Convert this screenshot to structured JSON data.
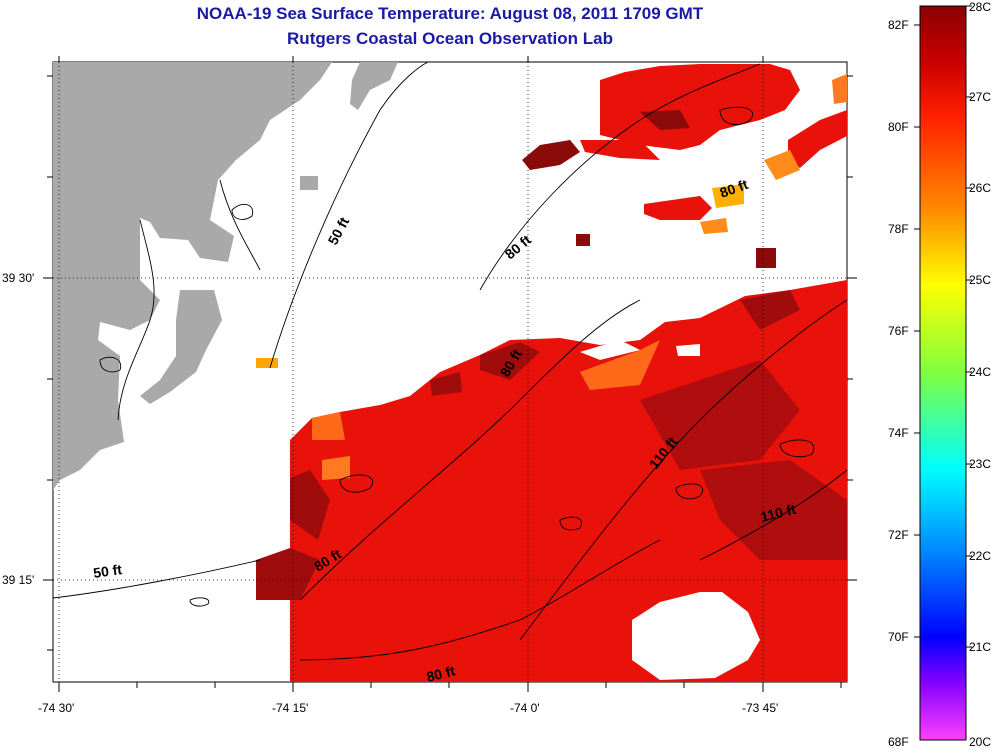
{
  "title": {
    "line1": "NOAA-19 Sea Surface Temperature:  August 08, 2011 1709 GMT",
    "line2": "Rutgers Coastal Ocean Observation Lab"
  },
  "map": {
    "lon_labels": [
      "-74 30'",
      "-74 15'",
      "-74 0'",
      "-73 45'"
    ],
    "lat_labels": [
      "39 30'",
      "39 15'"
    ],
    "contour_labels": [
      "50 ft",
      "50 ft",
      "80 ft",
      "80 ft",
      "80 ft",
      "80 ft",
      "80 ft",
      "110 ft",
      "110 ft"
    ],
    "colors": {
      "land": "#a9a9a9",
      "no_data": "#ffffff",
      "sst_dominant": "#e8120a",
      "sst_warm": "#8b0a0a",
      "sst_cool": "#ff6a1a"
    }
  },
  "colorbar": {
    "fahrenheit_labels": [
      "82F",
      "80F",
      "78F",
      "76F",
      "74F",
      "72F",
      "70F",
      "68F"
    ],
    "celsius_labels": [
      "28C",
      "27C",
      "26C",
      "25C",
      "24C",
      "23C",
      "22C",
      "21C",
      "20C"
    ],
    "colors": [
      "#8b0000",
      "#ff0000",
      "#ff8c00",
      "#ffff00",
      "#7fff00",
      "#00ffff",
      "#0080ff",
      "#0000ff",
      "#8000ff",
      "#ff40ff"
    ]
  }
}
